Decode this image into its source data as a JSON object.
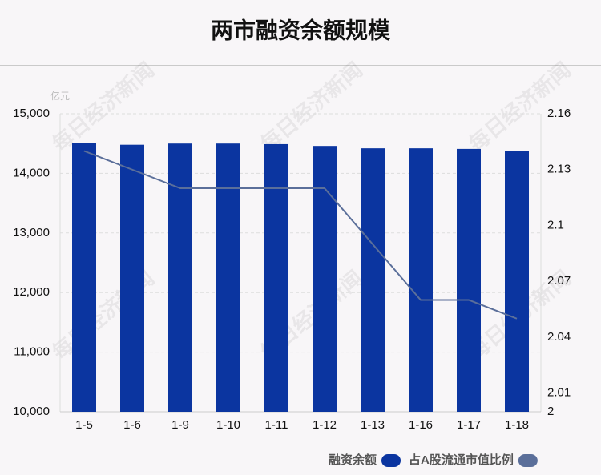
{
  "chart_data": {
    "type": "bar-line",
    "title": "两市融资余额规模",
    "unit": "亿元",
    "watermark": "每日经济新闻",
    "categories": [
      "1-5",
      "1-6",
      "1-9",
      "1-10",
      "1-11",
      "1-12",
      "1-13",
      "1-16",
      "1-17",
      "1-18"
    ],
    "series": [
      {
        "name": "融资余额",
        "color": "#0b35a0",
        "type": "bar",
        "values": [
          14510,
          14480,
          14500,
          14500,
          14490,
          14460,
          14420,
          14420,
          14410,
          14380
        ]
      },
      {
        "name": "占A股流通市值比例",
        "color": "#5b6f9a",
        "type": "line",
        "axis": "y2",
        "values": [
          2.14,
          2.13,
          2.12,
          2.12,
          2.12,
          2.12,
          2.09,
          2.06,
          2.06,
          2.05
        ]
      }
    ],
    "ylim": [
      10000,
      15000
    ],
    "yticks": [
      {
        "value": 10000,
        "label": "10,000"
      },
      {
        "value": 11000,
        "label": "11,000"
      },
      {
        "value": 12000,
        "label": "12,000"
      },
      {
        "value": 13000,
        "label": "13,000"
      },
      {
        "value": 14000,
        "label": "14,000"
      },
      {
        "value": 15000,
        "label": "15,000"
      }
    ],
    "y2lim": [
      2,
      2.16
    ],
    "y2ticks": [
      2,
      2.01,
      2.04,
      2.07,
      2.1,
      2.13,
      2.16
    ],
    "grid": true,
    "legend": "bottom-right"
  }
}
